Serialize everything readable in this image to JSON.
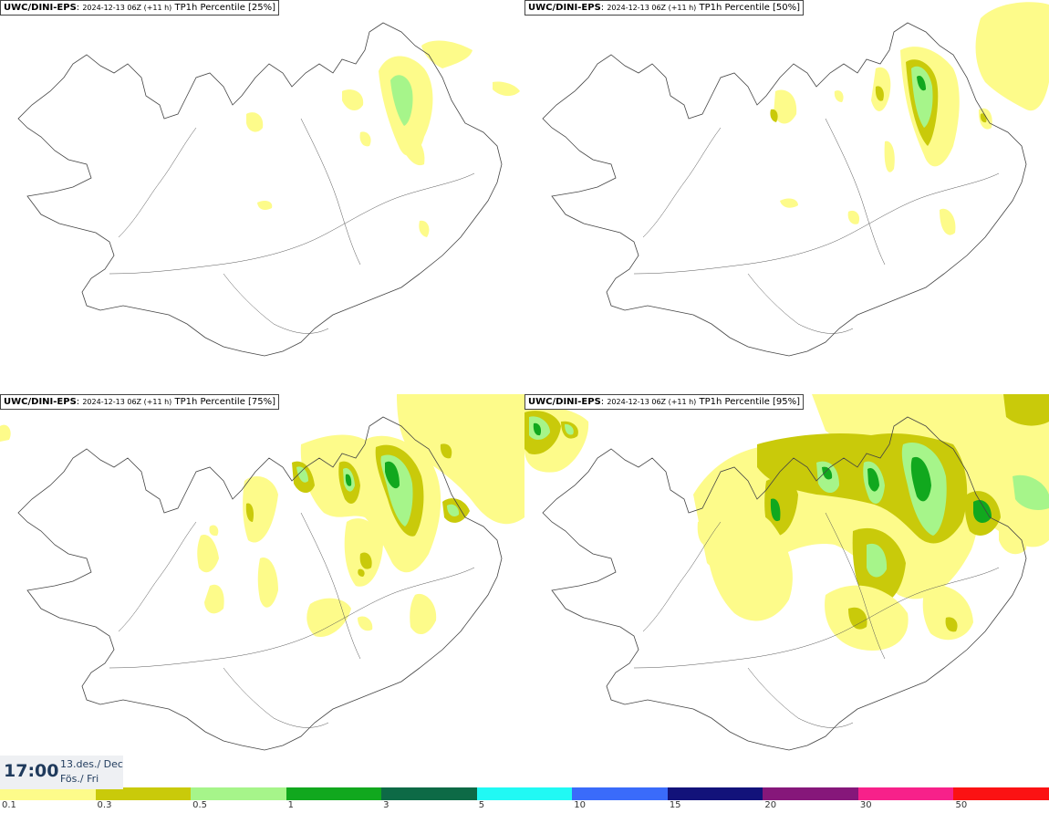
{
  "panels": [
    {
      "model": "UWC/DINI-EPS",
      "run": "2024-12-13 06Z (+11 h)",
      "field": "TP1h Percentile [25%]"
    },
    {
      "model": "UWC/DINI-EPS",
      "run": "2024-12-13 06Z (+11 h)",
      "field": "TP1h Percentile [50%]"
    },
    {
      "model": "UWC/DINI-EPS",
      "run": "2024-12-13 06Z (+11 h)",
      "field": "TP1h Percentile [75%]"
    },
    {
      "model": "UWC/DINI-EPS",
      "run": "2024-12-13 06Z (+11 h)",
      "field": "TP1h Percentile [95%]"
    }
  ],
  "timebox": {
    "time": "17:00",
    "date": "13.des./ Dec",
    "day": "Fös./ Fri"
  },
  "legend": {
    "colors": [
      "#fdfb8a",
      "#c9ca0a",
      "#a6f58a",
      "#11a81e",
      "#0d6a46",
      "#21f9f4",
      "#3a6bfa",
      "#12127a",
      "#86177a",
      "#f7218a",
      "#fb1213"
    ],
    "ticks": [
      "0.1",
      "0.3",
      "0.5",
      "1",
      "3",
      "5",
      "10",
      "15",
      "20",
      "30",
      "50"
    ]
  },
  "map_colors": {
    "light": "#fdfb8a",
    "olive": "#c9ca0a",
    "lightgreen": "#a6f58a",
    "green": "#11a81e",
    "coast": "#444444"
  }
}
